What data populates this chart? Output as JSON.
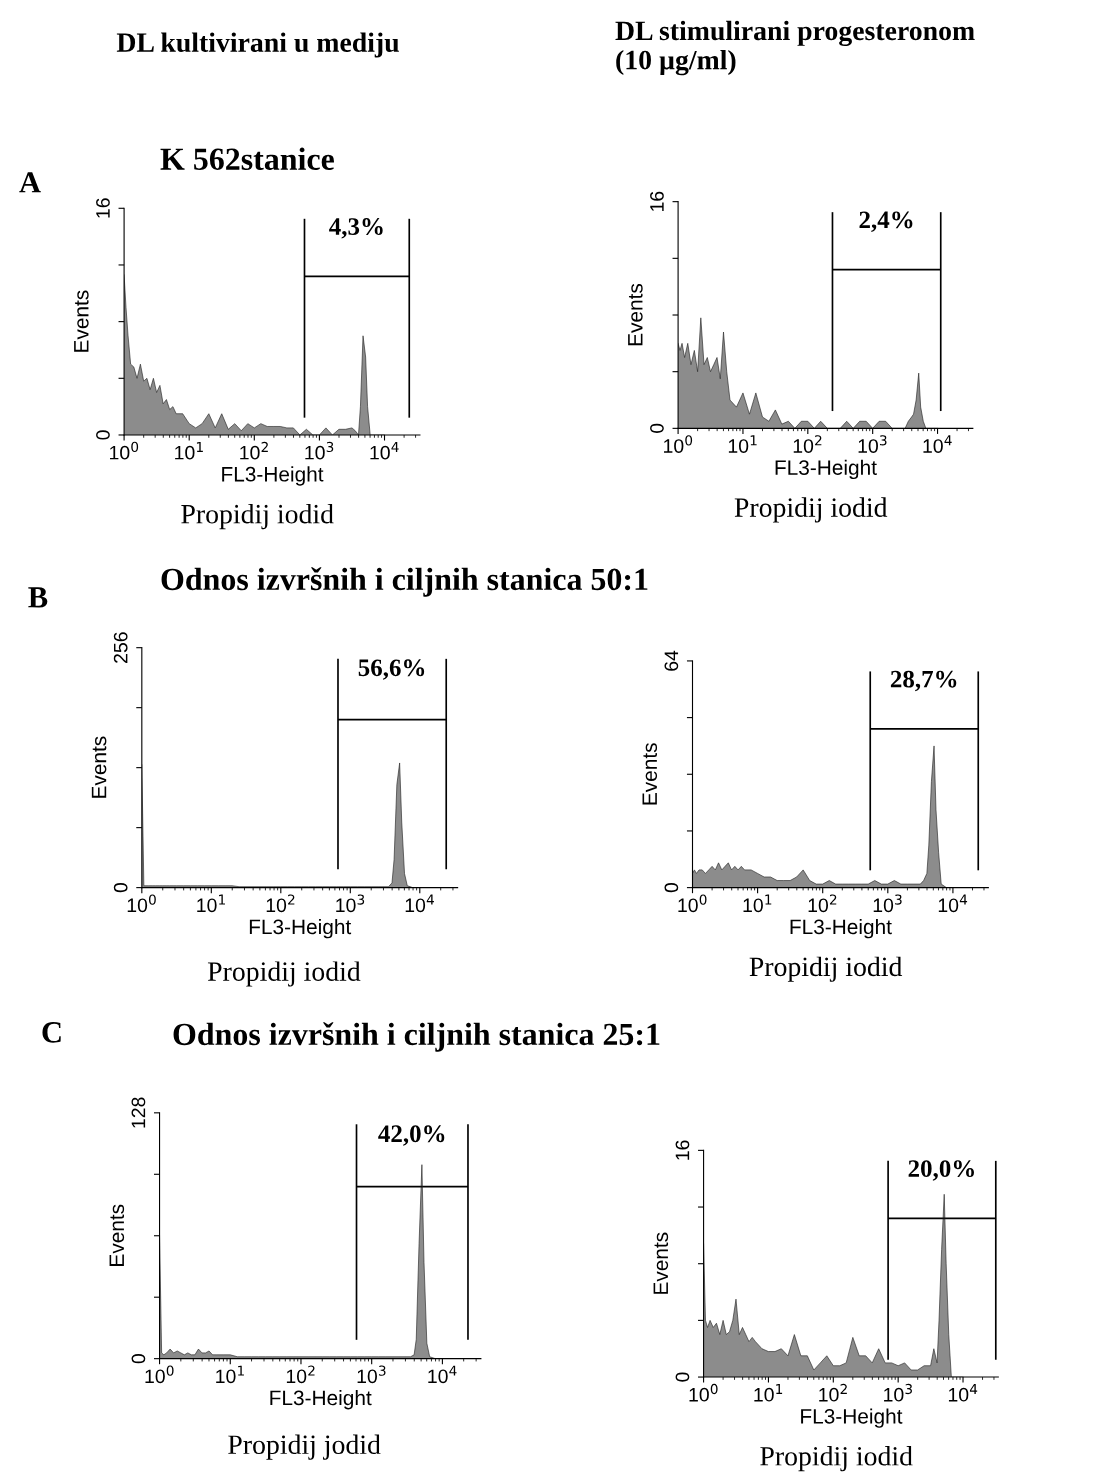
{
  "chart_data": [
    {
      "type": "area",
      "title": "K 562stanice",
      "xlabel": "FL3-Height",
      "ylabel": "Events",
      "log": "x",
      "grid": false,
      "legend": false,
      "annotations": [
        "DL kultivirani u mediju",
        "A",
        "Propidij iodid",
        "4,3%"
      ],
      "x": [
        1,
        1.07,
        1.15,
        1.26,
        1.41,
        1.58,
        1.78,
        2,
        2.24,
        2.51,
        2.82,
        3.16,
        3.55,
        3.98,
        4.47,
        5.01,
        5.62,
        6.31,
        7.94,
        10,
        12.6,
        15.8,
        20,
        25.1,
        31.6,
        39.8,
        50.1,
        63.1,
        79.4,
        100,
        126,
        158,
        200,
        251,
        316,
        398,
        501,
        631,
        794,
        1000,
        1259,
        1585,
        1995,
        2512,
        3162,
        3548,
        3981,
        4266,
        4677,
        5129,
        5495,
        6026,
        6607,
        7943,
        10000
      ],
      "series": [
        {
          "color": "#8c8c8c",
          "values": [
            11.3,
            9,
            7,
            5,
            4.8,
            4,
            5,
            3.8,
            4,
            3.2,
            4,
            3,
            3.5,
            2.2,
            2.5,
            1.8,
            2,
            1.5,
            1.5,
            0.8,
            0.5,
            0.8,
            1.5,
            0.5,
            1.5,
            0.4,
            0.8,
            0.3,
            0.8,
            0.5,
            0.8,
            0.6,
            0.6,
            0.6,
            0.5,
            0.5,
            0,
            0.4,
            0,
            0,
            0.5,
            0,
            0.4,
            0.4,
            0.5,
            0.3,
            0,
            2,
            7,
            5.5,
            2,
            0,
            0,
            0,
            0
          ]
        }
      ],
      "xlim": [
        1,
        35000
      ],
      "xticks": [
        {
          "value": 1,
          "label": "10$^{0}$"
        },
        {
          "value": 10,
          "label": "10$^{1}$"
        },
        {
          "value": 100,
          "label": "10$^{2}$"
        },
        {
          "value": 1000,
          "label": "10$^{3}$"
        },
        {
          "value": 10000,
          "label": "10$^{4}$"
        }
      ],
      "ylim": [
        0,
        16
      ],
      "yticks": [
        0,
        {
          "value": 4,
          "label": null
        },
        {
          "value": 8,
          "label": null
        },
        {
          "value": 12,
          "label": null
        },
        16
      ],
      "ref_lines": [
        {
          "axis": "x",
          "value": 590
        },
        {
          "axis": "x",
          "value": 24000
        }
      ]
    },
    {
      "type": "area",
      "xlabel": "FL3-Height",
      "ylabel": "Events",
      "log": "x",
      "grid": false,
      "legend": false,
      "annotations": [
        "DL stimulirani progesteronom\n(10 µg/ml)",
        "Propidij iodid",
        "2,4%"
      ],
      "x": [
        1,
        1.07,
        1.15,
        1.26,
        1.41,
        1.58,
        1.78,
        2,
        2.24,
        2.51,
        2.82,
        3.16,
        3.55,
        3.98,
        4.47,
        5.01,
        5.62,
        6.31,
        7.94,
        10,
        12.6,
        15.8,
        20,
        25.1,
        31.6,
        39.8,
        50.1,
        63.1,
        79.4,
        100,
        126,
        158,
        200,
        251,
        316,
        398,
        501,
        631,
        794,
        1000,
        1259,
        1585,
        1995,
        2512,
        3162,
        3548,
        3981,
        4266,
        4677,
        5129,
        5495,
        6026,
        6607,
        7943,
        10000
      ],
      "series": [
        {
          "color": "#8c8c8c",
          "values": [
            6,
            5.5,
            6,
            5,
            6,
            4.5,
            5.5,
            4,
            7.8,
            4.5,
            5,
            4,
            4.5,
            5,
            3.5,
            6.8,
            4,
            2,
            1.5,
            2.5,
            1,
            2.5,
            0.8,
            0.5,
            1.3,
            0.3,
            0.5,
            0,
            0.5,
            0.5,
            0,
            0.5,
            0,
            0,
            0,
            0.5,
            0,
            0.5,
            0.5,
            0,
            0.5,
            0.5,
            0,
            0,
            0,
            0.5,
            0.8,
            1,
            2,
            3.9,
            1.5,
            0.5,
            0,
            0,
            0
          ]
        }
      ],
      "xlim": [
        1,
        35000
      ],
      "xticks": [
        {
          "value": 1,
          "label": "10$^{0}$"
        },
        {
          "value": 10,
          "label": "10$^{1}$"
        },
        {
          "value": 100,
          "label": "10$^{2}$"
        },
        {
          "value": 1000,
          "label": "10$^{3}$"
        },
        {
          "value": 10000,
          "label": "10$^{4}$"
        }
      ],
      "ylim": [
        0,
        16
      ],
      "yticks": [
        0,
        {
          "value": 4,
          "label": null
        },
        {
          "value": 8,
          "label": null
        },
        {
          "value": 12,
          "label": null
        },
        16
      ],
      "ref_lines": [
        {
          "axis": "x",
          "value": 240
        },
        {
          "axis": "x",
          "value": 11200
        }
      ]
    },
    {
      "type": "area",
      "title": "Odnos izvršnih i ciljnih stanica 50:1",
      "xlabel": "FL3-Height",
      "ylabel": "Events",
      "log": "x",
      "grid": false,
      "legend": false,
      "annotations": [
        "B",
        "Propidij iodid",
        "56,6%"
      ],
      "x": [
        1,
        1.07,
        1.15,
        1.26,
        1.41,
        1.58,
        1.78,
        2,
        2.24,
        2.51,
        2.82,
        3.16,
        3.55,
        3.98,
        4.47,
        5.01,
        5.62,
        6.31,
        7.94,
        10,
        12.6,
        15.8,
        20,
        25.1,
        31.6,
        39.8,
        50.1,
        63.1,
        79.4,
        100,
        126,
        158,
        200,
        251,
        316,
        398,
        501,
        631,
        794,
        1000,
        1259,
        1585,
        1995,
        2512,
        3162,
        3548,
        3981,
        4266,
        4677,
        5129,
        5495,
        6026,
        6607,
        7943,
        10000
      ],
      "series": [
        {
          "color": "#8c8c8c",
          "values": [
            131,
            2,
            2,
            2,
            2,
            2,
            2,
            2,
            2,
            2,
            2,
            2,
            2,
            2,
            2,
            2,
            2,
            2,
            2,
            2,
            2,
            2,
            2,
            1,
            1,
            1,
            1,
            1,
            1,
            1,
            1,
            1,
            1,
            1,
            1,
            1,
            1,
            1,
            1,
            1,
            1,
            1,
            1,
            1,
            1,
            1,
            5,
            30,
            110,
            133,
            70,
            15,
            2,
            0,
            0
          ]
        }
      ],
      "xlim": [
        1,
        35000
      ],
      "xticks": [
        {
          "value": 1,
          "label": "10$^{0}$"
        },
        {
          "value": 10,
          "label": "10$^{1}$"
        },
        {
          "value": 100,
          "label": "10$^{2}$"
        },
        {
          "value": 1000,
          "label": "10$^{3}$"
        },
        {
          "value": 10000,
          "label": "10$^{4}$"
        }
      ],
      "ylim": [
        0,
        256
      ],
      "yticks": [
        0,
        {
          "value": 64,
          "label": null
        },
        {
          "value": 128,
          "label": null
        },
        {
          "value": 192,
          "label": null
        },
        256
      ],
      "ref_lines": [
        {
          "axis": "x",
          "value": 665
        },
        {
          "axis": "x",
          "value": 24000
        }
      ]
    },
    {
      "type": "area",
      "xlabel": "FL3-Height",
      "ylabel": "Events",
      "log": "x",
      "grid": false,
      "legend": false,
      "annotations": [
        "Propidij iodid",
        "28,7%"
      ],
      "x": [
        1,
        1.07,
        1.15,
        1.26,
        1.41,
        1.58,
        1.78,
        2,
        2.24,
        2.51,
        2.82,
        3.16,
        3.55,
        3.98,
        4.47,
        5.01,
        5.62,
        6.31,
        7.94,
        10,
        12.6,
        15.8,
        20,
        25.1,
        31.6,
        39.8,
        50.1,
        63.1,
        79.4,
        100,
        126,
        158,
        200,
        251,
        316,
        398,
        501,
        631,
        794,
        1000,
        1259,
        1585,
        1995,
        2512,
        3162,
        3548,
        3981,
        4266,
        4677,
        5129,
        5495,
        6026,
        6607,
        7943,
        10000
      ],
      "series": [
        {
          "color": "#8c8c8c",
          "values": [
            4,
            5,
            4,
            5,
            5,
            4,
            5,
            6,
            5,
            7,
            5,
            6,
            7,
            5,
            6,
            5,
            6,
            5,
            5,
            4,
            3,
            3,
            2,
            2,
            2,
            3,
            5,
            2,
            1,
            1,
            2,
            1,
            1,
            1,
            1,
            1,
            1,
            2,
            1,
            1,
            2,
            1,
            1,
            1,
            1,
            2,
            4,
            12,
            30,
            40,
            22,
            10,
            1,
            0,
            0
          ]
        }
      ],
      "xlim": [
        1,
        35000
      ],
      "xticks": [
        {
          "value": 1,
          "label": "10$^{0}$"
        },
        {
          "value": 10,
          "label": "10$^{1}$"
        },
        {
          "value": 100,
          "label": "10$^{2}$"
        },
        {
          "value": 1000,
          "label": "10$^{3}$"
        },
        {
          "value": 10000,
          "label": "10$^{4}$"
        }
      ],
      "ylim": [
        0,
        64
      ],
      "yticks": [
        0,
        {
          "value": 16,
          "label": null
        },
        {
          "value": 32,
          "label": null
        },
        {
          "value": 48,
          "label": null
        },
        64
      ],
      "ref_lines": [
        {
          "axis": "x",
          "value": 537
        },
        {
          "axis": "x",
          "value": 24500
        }
      ]
    },
    {
      "type": "area",
      "title": "Odnos izvršnih i ciljnih stanica 25:1",
      "xlabel": "FL3-Height",
      "ylabel": "Events",
      "log": "x",
      "grid": false,
      "legend": false,
      "annotations": [
        "C",
        "Propidij jodid",
        "42,0%"
      ],
      "x": [
        1,
        1.07,
        1.15,
        1.26,
        1.41,
        1.58,
        1.78,
        2,
        2.24,
        2.51,
        2.82,
        3.16,
        3.55,
        3.98,
        4.47,
        5.01,
        5.62,
        6.31,
        7.94,
        10,
        12.6,
        15.8,
        20,
        25.1,
        31.6,
        39.8,
        50.1,
        63.1,
        79.4,
        100,
        126,
        158,
        200,
        251,
        316,
        398,
        501,
        631,
        794,
        1000,
        1259,
        1585,
        1995,
        2512,
        3162,
        3548,
        3981,
        4266,
        4677,
        5129,
        5495,
        6026,
        6607,
        7943,
        10000
      ],
      "series": [
        {
          "color": "#8c8c8c",
          "values": [
            64,
            3,
            2,
            3,
            5,
            3,
            4,
            3,
            2,
            3,
            2,
            2,
            5,
            3,
            3,
            4,
            2,
            2,
            2,
            2,
            1,
            1,
            1,
            1,
            1,
            1,
            1,
            1,
            1,
            1,
            1,
            1,
            1,
            1,
            1,
            1,
            1,
            1,
            1,
            1,
            1,
            1,
            1,
            1,
            1,
            1,
            2,
            10,
            60,
            101,
            50,
            8,
            1,
            0,
            0
          ]
        }
      ],
      "xlim": [
        1,
        35000
      ],
      "xticks": [
        {
          "value": 1,
          "label": "10$^{0}$"
        },
        {
          "value": 10,
          "label": "10$^{1}$"
        },
        {
          "value": 100,
          "label": "10$^{2}$"
        },
        {
          "value": 1000,
          "label": "10$^{3}$"
        },
        {
          "value": 10000,
          "label": "10$^{4}$"
        }
      ],
      "ylim": [
        0,
        128
      ],
      "yticks": [
        0,
        {
          "value": 32,
          "label": null
        },
        {
          "value": 64,
          "label": null
        },
        {
          "value": 96,
          "label": null
        },
        128
      ],
      "ref_lines": [
        {
          "axis": "x",
          "value": 610
        },
        {
          "axis": "x",
          "value": 23000
        }
      ]
    },
    {
      "type": "area",
      "xlabel": "FL3-Height",
      "ylabel": "Events",
      "log": "x",
      "grid": false,
      "legend": false,
      "annotations": [
        "Propidij iodid",
        "20,0%"
      ],
      "x": [
        1,
        1.07,
        1.15,
        1.26,
        1.41,
        1.58,
        1.78,
        2,
        2.24,
        2.51,
        2.82,
        3.16,
        3.55,
        3.98,
        4.47,
        5.01,
        5.62,
        6.31,
        7.94,
        10,
        12.6,
        15.8,
        20,
        25.1,
        31.6,
        39.8,
        50.1,
        63.1,
        79.4,
        100,
        126,
        158,
        200,
        251,
        316,
        398,
        501,
        631,
        794,
        1000,
        1259,
        1585,
        1995,
        2512,
        3162,
        3548,
        3981,
        4266,
        4677,
        5129,
        5495,
        6026,
        6607,
        7943,
        10000
      ],
      "series": [
        {
          "color": "#8c8c8c",
          "values": [
            9.4,
            4,
            3.5,
            4,
            3.5,
            3.8,
            3,
            4,
            3,
            3.2,
            4,
            5.5,
            3,
            3.5,
            3,
            2.5,
            2.8,
            2.5,
            2,
            1.8,
            1.8,
            2,
            1.5,
            3,
            1.5,
            1.5,
            0.5,
            1,
            1.5,
            0.8,
            0.8,
            1,
            2.8,
            1.5,
            1.5,
            1,
            2,
            1,
            1,
            0.8,
            1,
            0.5,
            0.5,
            0.8,
            0.8,
            2,
            1,
            4,
            9,
            12.9,
            8,
            3,
            0,
            0,
            0
          ]
        }
      ],
      "xlim": [
        1,
        35000
      ],
      "xticks": [
        {
          "value": 1,
          "label": "10$^{0}$"
        },
        {
          "value": 10,
          "label": "10$^{1}$"
        },
        {
          "value": 100,
          "label": "10$^{2}$"
        },
        {
          "value": 1000,
          "label": "10$^{3}$"
        },
        {
          "value": 10000,
          "label": "10$^{4}$"
        }
      ],
      "ylim": [
        0,
        16
      ],
      "yticks": [
        0,
        {
          "value": 4,
          "label": null
        },
        {
          "value": 8,
          "label": null
        },
        {
          "value": 12,
          "label": null
        },
        16
      ],
      "ref_lines": [
        {
          "axis": "x",
          "value": 700
        },
        {
          "axis": "x",
          "value": 32000
        }
      ]
    }
  ]
}
